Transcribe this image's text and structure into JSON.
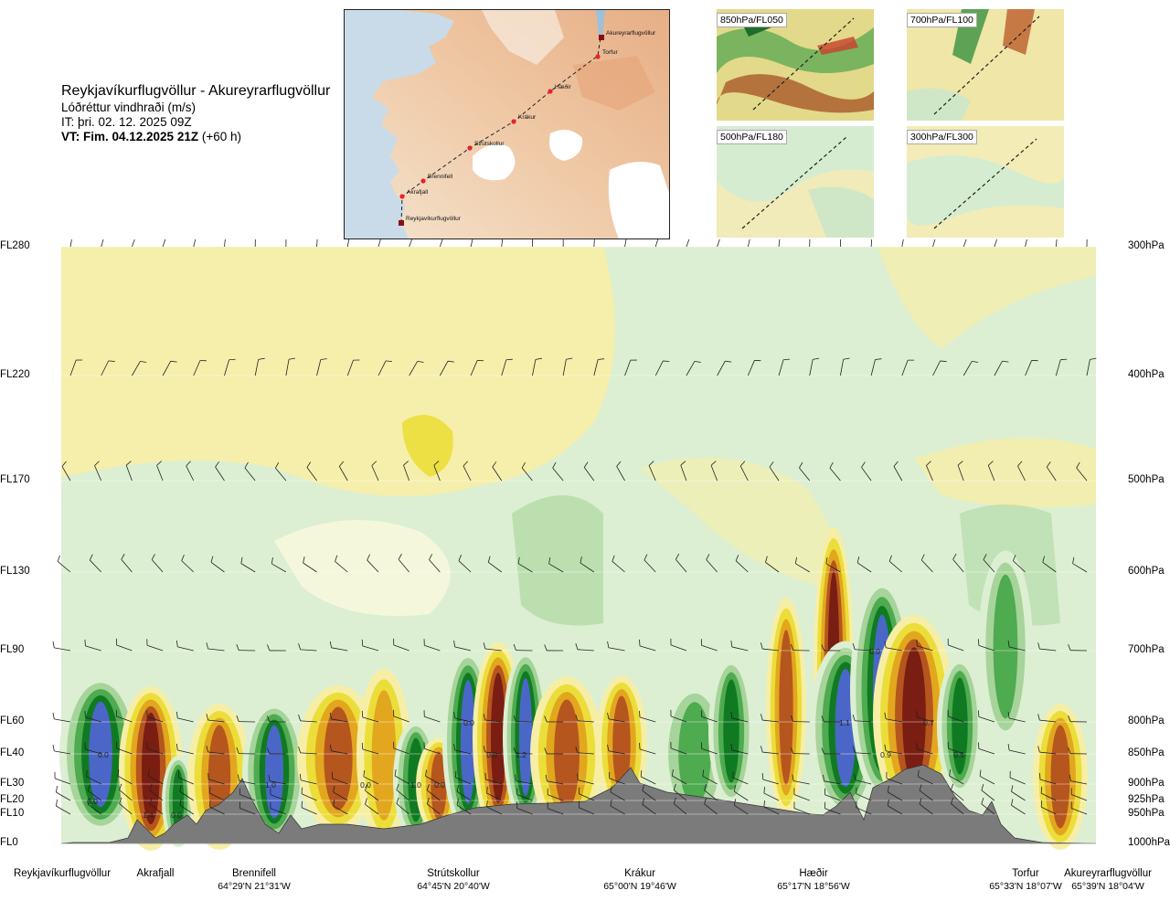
{
  "header": {
    "title": "Reykjavíkurflugvöllur - Akureyrarflugvöllur",
    "subtitle": "Lóðréttur vindhraði (m/s)",
    "issue_time": "IT: þri. 02. 12. 2025 09Z",
    "valid_time_label": "VT: Fim. 04.12.2025 21Z",
    "valid_time_offset": "(+60 h)"
  },
  "map": {
    "stations": [
      "Akureyrarflugvöllur",
      "Torfur",
      "Hæðir",
      "Krákur",
      "Strútskollur",
      "Brennifell",
      "Akrafjall",
      "Reykjavíkurflugvöllur"
    ],
    "route_color": "#222222",
    "station_color": "#e8242a"
  },
  "panels": [
    {
      "label": "850hPa/FL050"
    },
    {
      "label": "700hPa/FL100"
    },
    {
      "label": "500hPa/FL180"
    },
    {
      "label": "300hPa/FL300"
    }
  ],
  "colors": {
    "strong_up": "#7a1d12",
    "up": "#b5561e",
    "moderate_up": "#e2a71e",
    "weak_up": "#ecde3a",
    "slight_up": "#f7eea6",
    "neutral": "#fbf9e0",
    "slight_down": "#dcefd2",
    "weak_down": "#a6d49a",
    "down": "#4eab4f",
    "strong_down": "#107a22",
    "very_strong_down": "#4a67c8",
    "terrain": "#7b7b7b"
  },
  "chart_data": {
    "type": "heatmap",
    "title": "Lóðréttur vindhraði (m/s)",
    "flight_levels": [
      "FL280",
      "FL220",
      "FL170",
      "FL130",
      "FL90",
      "FL60",
      "FL40",
      "FL30",
      "FL20",
      "FL10",
      "FL0"
    ],
    "pressure_levels": [
      "300hPa",
      "400hPa",
      "500hPa",
      "600hPa",
      "700hPa",
      "800hPa",
      "850hPa",
      "900hPa",
      "925hPa",
      "950hPa",
      "1000hPa"
    ],
    "waypoints": [
      {
        "name": "Reykjavíkurflugvöllur",
        "coord": ""
      },
      {
        "name": "Akrafjall",
        "coord": ""
      },
      {
        "name": "Brennifell",
        "coord": "64°29'N 21°31'W"
      },
      {
        "name": "Strútskollur",
        "coord": "64°45'N 20°40'W"
      },
      {
        "name": "Krákur",
        "coord": "65°00'N 19°46'W"
      },
      {
        "name": "Hæðir",
        "coord": "65°17'N 18°56'W"
      },
      {
        "name": "Torfur",
        "coord": "65°33'N 18°07'W"
      },
      {
        "name": "Akureyrarflugvöllur",
        "coord": "65°39'N 18°04'W"
      }
    ],
    "value_labels": [
      "0.0",
      "0.0",
      "1.0",
      "0.0",
      "1.0",
      "0.0",
      "0.0",
      "0.0",
      "1.2",
      "1.4",
      "0.0",
      "1.1",
      "0.0",
      "0.7",
      "0.9",
      "0.5"
    ]
  }
}
